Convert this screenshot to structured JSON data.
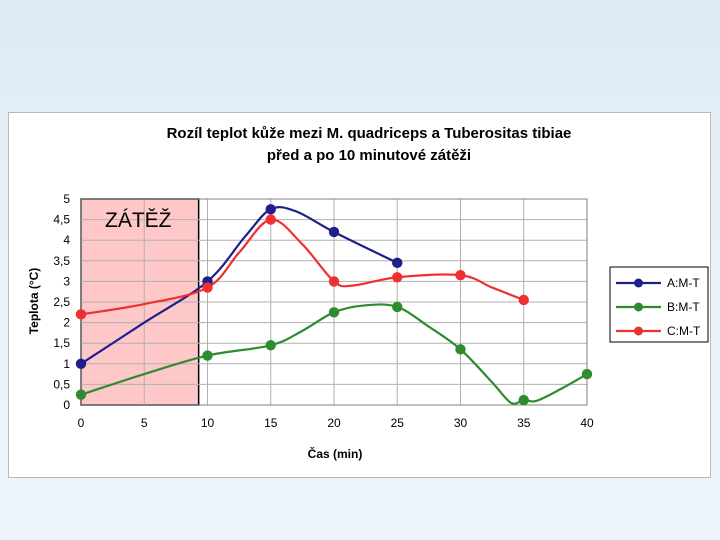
{
  "chart_data": {
    "type": "line",
    "title_line1": "Rozíl teplot kůže mezi M. quadriceps a Tuberositas tibiae",
    "title_line2": "před a po 10 minutové zátěži",
    "xlabel": "Čas (min)",
    "ylabel": "Teplota (°C)",
    "xlim": [
      0,
      40
    ],
    "ylim": [
      0,
      5
    ],
    "x_ticks": [
      "0",
      "5",
      "10",
      "15",
      "20",
      "25",
      "30",
      "35",
      "40"
    ],
    "y_ticks": [
      "0",
      "0,5",
      "1",
      "1,5",
      "2",
      "2,5",
      "3",
      "3,5",
      "4",
      "4,5",
      "5"
    ],
    "grid": true,
    "legend_position": "right",
    "annotation": {
      "label": "ZÁTĚŽ",
      "x_range": [
        0,
        9.3
      ],
      "color": "#ffc8c8"
    },
    "series": [
      {
        "name": "A:M-T",
        "color": "#1f1f8c",
        "x": [
          0,
          10,
          15,
          20,
          25
        ],
        "y": [
          1.0,
          3.0,
          4.75,
          4.2,
          3.45
        ],
        "curve": [
          [
            0,
            1.0
          ],
          [
            5,
            2.0
          ],
          [
            10,
            3.0
          ],
          [
            13,
            4.1
          ],
          [
            15,
            4.75
          ],
          [
            17,
            4.7
          ],
          [
            20,
            4.2
          ],
          [
            25,
            3.45
          ]
        ]
      },
      {
        "name": "B:M-T",
        "color": "#2e8b2e",
        "x": [
          0,
          10,
          15,
          20,
          25,
          30,
          35,
          40
        ],
        "y": [
          0.25,
          1.2,
          1.45,
          2.25,
          2.38,
          1.35,
          0.12,
          0.75
        ],
        "curve": [
          [
            0,
            0.25
          ],
          [
            5,
            0.75
          ],
          [
            10,
            1.2
          ],
          [
            15,
            1.45
          ],
          [
            17.5,
            1.8
          ],
          [
            20,
            2.25
          ],
          [
            22.5,
            2.42
          ],
          [
            25,
            2.38
          ],
          [
            27.5,
            1.9
          ],
          [
            30,
            1.35
          ],
          [
            32.5,
            0.55
          ],
          [
            34,
            0.05
          ],
          [
            35,
            0.12
          ],
          [
            36,
            0.1
          ],
          [
            38,
            0.4
          ],
          [
            40,
            0.75
          ]
        ]
      },
      {
        "name": "C:M-T",
        "color": "#ee3030",
        "x": [
          0,
          10,
          15,
          20,
          25,
          30,
          35
        ],
        "y": [
          2.2,
          2.85,
          4.5,
          3.0,
          3.1,
          3.15,
          2.55
        ],
        "curve": [
          [
            0,
            2.2
          ],
          [
            5,
            2.45
          ],
          [
            10,
            2.85
          ],
          [
            12.5,
            3.7
          ],
          [
            15,
            4.5
          ],
          [
            17.5,
            3.9
          ],
          [
            20,
            3.0
          ],
          [
            21.5,
            2.9
          ],
          [
            25,
            3.1
          ],
          [
            30,
            3.15
          ],
          [
            32.5,
            2.85
          ],
          [
            35,
            2.55
          ]
        ]
      }
    ]
  }
}
